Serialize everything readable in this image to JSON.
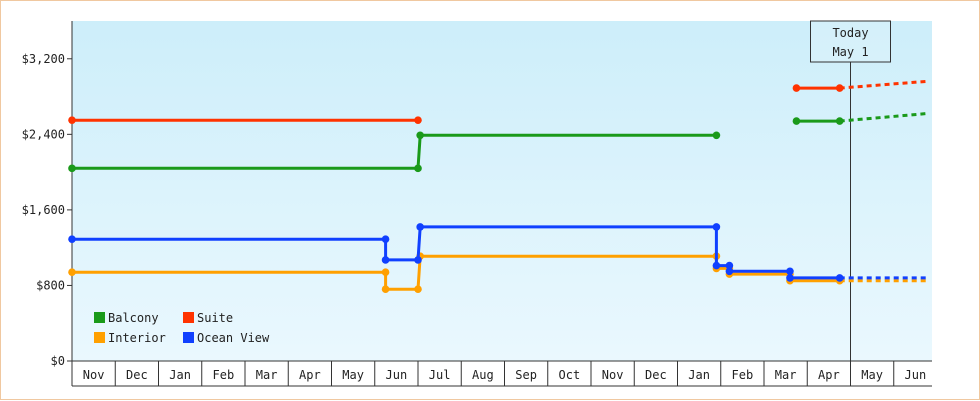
{
  "chart_data": {
    "type": "line",
    "step": true,
    "y_format": "currency",
    "ylim": [
      0,
      3600
    ],
    "y_ticks": [
      0,
      800,
      1600,
      2400,
      3200
    ],
    "y_tick_labels": [
      "$0",
      "$800",
      "$1,600",
      "$2,400",
      "$3,200"
    ],
    "x_month_labels": [
      "Nov",
      "Dec",
      "Jan",
      "Feb",
      "Mar",
      "Apr",
      "May",
      "Jun",
      "Jul",
      "Aug",
      "Sep",
      "Oct",
      "Nov",
      "Dec",
      "Jan",
      "Feb",
      "Mar",
      "Apr",
      "May",
      "Jun"
    ],
    "grid": false,
    "legend_position": "bottom-left",
    "today_marker": {
      "line1": "Today",
      "line2": "May 1",
      "x": 18.0
    },
    "colors": {
      "background_top": "#cdeefa",
      "background_bottom": "#eaf8fe",
      "axis": "#333333"
    },
    "series": [
      {
        "name": "Balcony",
        "color": "#1a9a1a",
        "points": [
          [
            0,
            2040
          ],
          [
            8.0,
            2040
          ],
          [
            8.05,
            2390
          ],
          [
            14.9,
            2390
          ]
        ],
        "points_recent": [
          [
            16.75,
            2540
          ],
          [
            17.75,
            2540
          ]
        ],
        "forecast": [
          [
            17.75,
            2540
          ],
          [
            19.75,
            2620
          ]
        ]
      },
      {
        "name": "Suite",
        "color": "#ff3300",
        "points": [
          [
            0,
            2550
          ],
          [
            8.0,
            2550
          ]
        ],
        "points_recent": [
          [
            16.75,
            2890
          ],
          [
            17.75,
            2890
          ]
        ],
        "forecast": [
          [
            17.75,
            2890
          ],
          [
            19.75,
            2960
          ]
        ]
      },
      {
        "name": "Interior",
        "color": "#ffa000",
        "points": [
          [
            0,
            940
          ],
          [
            7.25,
            940
          ],
          [
            7.25,
            760
          ],
          [
            8.0,
            760
          ],
          [
            8.05,
            1110
          ],
          [
            14.9,
            1110
          ],
          [
            14.9,
            980
          ],
          [
            15.2,
            980
          ],
          [
            15.2,
            920
          ],
          [
            16.6,
            920
          ],
          [
            16.6,
            850
          ],
          [
            17.75,
            850
          ]
        ],
        "points_recent": [],
        "forecast": [
          [
            17.75,
            850
          ],
          [
            19.75,
            850
          ]
        ]
      },
      {
        "name": "Ocean View",
        "color": "#1040ff",
        "points": [
          [
            0,
            1290
          ],
          [
            7.25,
            1290
          ],
          [
            7.25,
            1070
          ],
          [
            8.0,
            1070
          ],
          [
            8.05,
            1420
          ],
          [
            14.9,
            1420
          ],
          [
            14.9,
            1010
          ],
          [
            15.2,
            1010
          ],
          [
            15.2,
            950
          ],
          [
            16.6,
            950
          ],
          [
            16.6,
            880
          ],
          [
            17.75,
            880
          ]
        ],
        "points_recent": [],
        "forecast": [
          [
            17.75,
            880
          ],
          [
            19.75,
            880
          ]
        ]
      }
    ]
  }
}
